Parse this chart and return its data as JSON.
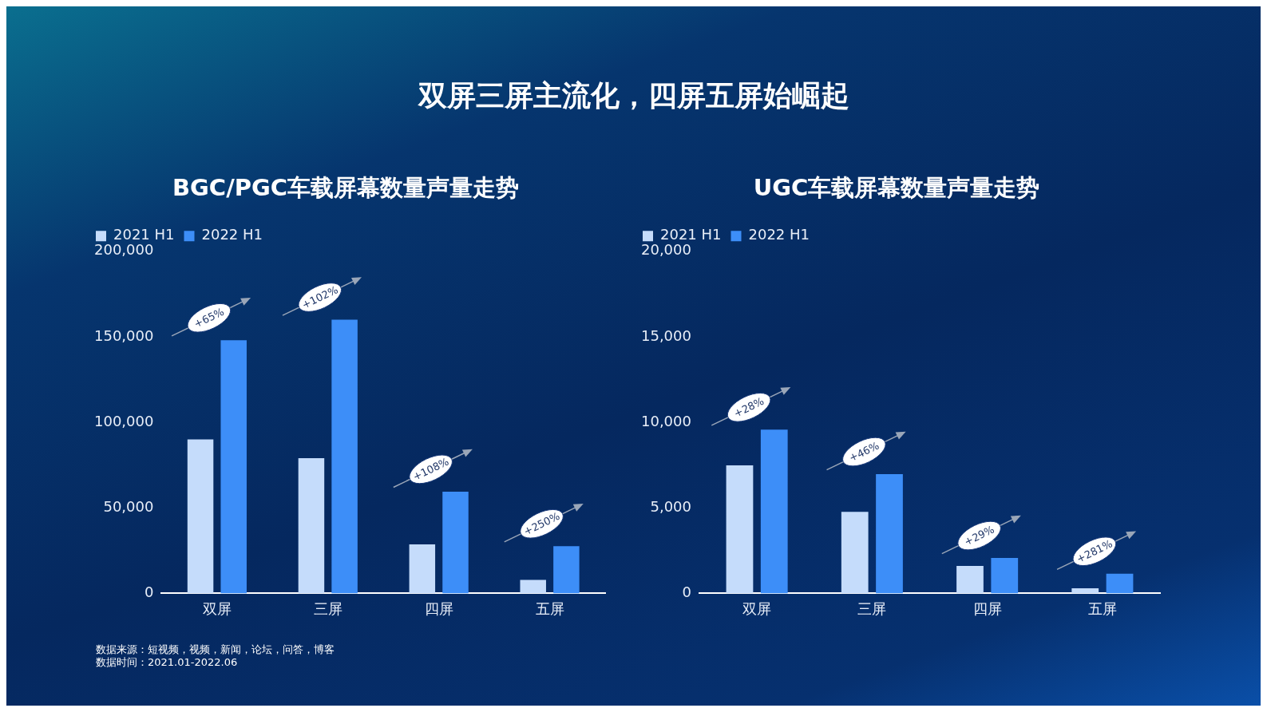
{
  "chart_data": [
    {
      "type": "other",
      "title": "双屏三屏主流化，四屏五屏始崛起"
    },
    {
      "type": "bar",
      "title": "BGC/PGC车载屏幕数量声量走势",
      "categories": [
        "双屏",
        "三屏",
        "四屏",
        "五屏"
      ],
      "series": [
        {
          "name": "2021 H1",
          "color": "#c5dcfb",
          "values": [
            90000,
            79000,
            28700,
            7900
          ]
        },
        {
          "name": "2022 H1",
          "color": "#3d8ef8",
          "values": [
            148000,
            160000,
            59500,
            27600
          ]
        }
      ],
      "ylim": [
        0,
        200000
      ],
      "yticks": [
        0,
        {
          "value": 50000,
          "label": "50,000"
        },
        {
          "value": 100000,
          "label": "100,000"
        },
        {
          "value": 150000,
          "label": "150,000"
        },
        {
          "value": 200000,
          "label": "200,000"
        }
      ],
      "grid": false,
      "legend": "top left",
      "annotations": [
        "+65%",
        "+102%",
        "+108%",
        "+250%"
      ]
    },
    {
      "type": "bar",
      "title": "UGC车载屏幕数量声量走势",
      "categories": [
        "双屏",
        "三屏",
        "四屏",
        "五屏"
      ],
      "series": [
        {
          "name": "2021 H1",
          "color": "#c5dcfb",
          "values": [
            7480,
            4770,
            1600,
            300
          ]
        },
        {
          "name": "2022 H1",
          "color": "#3d8ef8",
          "values": [
            9570,
            6970,
            2070,
            1150
          ]
        }
      ],
      "ylim": [
        0,
        20000
      ],
      "yticks": [
        0,
        {
          "value": 5000,
          "label": "5,000"
        },
        {
          "value": 10000,
          "label": "10,000"
        },
        {
          "value": 15000,
          "label": "15,000"
        },
        {
          "value": 20000,
          "label": "20,000"
        }
      ],
      "grid": false,
      "legend": "top left",
      "annotations": [
        "+28%",
        "+46%",
        "+29%",
        "+281%"
      ]
    },
    {
      "type": "other",
      "annotations": [
        "数据来源：短视频，视频，新闻，论坛，问答，博客",
        "数据时间：2021.01-2022.06"
      ]
    }
  ]
}
